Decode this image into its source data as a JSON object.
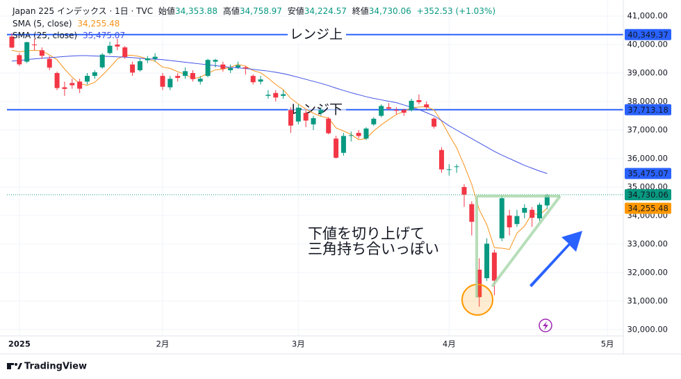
{
  "chart_data": {
    "type": "candlestick",
    "header": {
      "title": "Japan 225 インデックス · 1日 · TVC",
      "stats": [
        {
          "label": "始値",
          "value": "34,353.88"
        },
        {
          "label": "高値",
          "value": "34,758.97"
        },
        {
          "label": "安値",
          "value": "34,224.57"
        },
        {
          "label": "終値",
          "value": "34,730.06"
        }
      ],
      "change": "+352.53 (+1.03%)"
    },
    "categories": [
      null,
      "2025",
      null,
      null,
      null,
      null,
      null,
      null,
      null,
      null,
      null,
      null,
      null,
      null,
      null,
      null,
      null,
      null,
      null,
      null,
      "2月",
      null,
      null,
      null,
      null,
      null,
      null,
      null,
      null,
      null,
      null,
      null,
      null,
      null,
      null,
      null,
      null,
      null,
      "3月",
      null,
      null,
      null,
      null,
      null,
      null,
      null,
      null,
      null,
      null,
      null,
      null,
      null,
      null,
      null,
      null,
      null,
      null,
      null,
      "4月",
      null,
      null,
      null,
      null,
      null,
      null,
      null,
      null,
      null,
      null,
      null,
      null,
      null
    ],
    "future_ticks": [
      "5月"
    ],
    "candles": {
      "up_color": "#089981",
      "down_color": "#f23645",
      "open": [
        40281,
        39628,
        39400,
        40000,
        39800,
        39500,
        39000,
        38500,
        38650,
        38700,
        38700,
        38900,
        39200,
        39700,
        40000,
        39900,
        39300,
        39100,
        39450,
        39500,
        38900,
        38500,
        38900,
        38900,
        39000,
        38700,
        38900,
        39400,
        39300,
        39100,
        39200,
        39200,
        38900,
        38700,
        38200,
        38300,
        38200,
        37700,
        37300,
        37600,
        37200,
        37600,
        37400,
        36700,
        36200,
        36800,
        36900,
        36700,
        37200,
        37500,
        37800,
        37700,
        37700,
        37700,
        38050,
        37900,
        37400,
        36300,
        35600,
        35700,
        35000,
        34400,
        32100,
        31800,
        32700,
        33200,
        34000,
        33700,
        34100,
        34200,
        33900,
        34353.88
      ],
      "high": [
        40400,
        39700,
        40100,
        40200,
        39900,
        39600,
        39050,
        38700,
        38800,
        38800,
        39000,
        39100,
        39700,
        40100,
        40200,
        39950,
        39400,
        39500,
        39600,
        39700,
        39000,
        38900,
        39000,
        39200,
        39100,
        38900,
        39500,
        39500,
        39400,
        39300,
        39400,
        39250,
        38950,
        38900,
        38400,
        38400,
        38400,
        37800,
        37900,
        37700,
        37500,
        37800,
        37450,
        36800,
        36900,
        36950,
        37000,
        37100,
        37450,
        37900,
        37950,
        37800,
        37750,
        38100,
        38250,
        38000,
        37450,
        36400,
        35800,
        35800,
        35100,
        34500,
        32500,
        33200,
        32800,
        34700,
        34200,
        34200,
        34400,
        34300,
        34450,
        34758.97
      ],
      "low": [
        39870,
        39250,
        39350,
        39800,
        39500,
        39100,
        38400,
        38200,
        38450,
        38300,
        38600,
        38800,
        39150,
        39650,
        39800,
        39500,
        38900,
        39050,
        39350,
        39400,
        38400,
        38400,
        38700,
        38800,
        38700,
        38600,
        38850,
        39200,
        39050,
        39000,
        39150,
        38950,
        38600,
        38600,
        38100,
        38000,
        38100,
        36900,
        37200,
        37100,
        37000,
        37500,
        36850,
        36000,
        36100,
        36600,
        36700,
        36650,
        37150,
        37450,
        37700,
        37550,
        37500,
        37650,
        37900,
        37700,
        37050,
        35500,
        35400,
        35500,
        34300,
        33300,
        30800,
        31700,
        31200,
        33100,
        33300,
        33600,
        33900,
        33600,
        33800,
        34224.57
      ],
      "close": [
        39894,
        39307,
        40083,
        39981,
        39605,
        39190,
        38474,
        38444,
        38572,
        38451,
        38902,
        39027,
        39646,
        39958,
        39931,
        39566,
        39016,
        39414,
        39513,
        39572,
        38520,
        38798,
        38831,
        39066,
        38787,
        38801,
        39461,
        39461,
        39149,
        39174,
        39270,
        39164,
        38678,
        38776,
        38237,
        38142,
        38256,
        37155,
        37785,
        37331,
        37418,
        37704,
        36887,
        36028,
        36793,
        36819,
        36790,
        37053,
        37396,
        37845,
        37751,
        37677,
        37608,
        38027,
        37979,
        37799,
        37120,
        35617,
        35624,
        35725,
        34735,
        33780,
        31136,
        33012,
        31714,
        34609,
        33585,
        33982,
        34267,
        33920,
        34377,
        34730.06
      ]
    },
    "series": [
      {
        "name": "SMA (5, close)",
        "color": "#f7931a",
        "last_label": "34,255.48",
        "values": [
          39800,
          39750,
          39780,
          39800,
          39774,
          39633,
          39467,
          39139,
          38857,
          38626,
          38569,
          38679,
          38920,
          39197,
          39493,
          39626,
          39623,
          39577,
          39488,
          39416,
          39207,
          39163,
          39047,
          38957,
          38800,
          38857,
          38989,
          39115,
          39132,
          39209,
          39303,
          39244,
          39087,
          39012,
          38825,
          38599,
          38418,
          38113,
          37915,
          37734,
          37589,
          37479,
          37425,
          37074,
          36966,
          36846,
          36663,
          36697,
          36970,
          37181,
          37367,
          37544,
          37655,
          37782,
          37808,
          37818,
          37707,
          37308,
          36828,
          36377,
          35764,
          35096,
          34200,
          33678,
          32875,
          32850,
          32811,
          33380,
          33631,
          34073,
          34026,
          34255.48
        ]
      },
      {
        "name": "SMA (25, close)",
        "color": "#3f51e5",
        "last_label": "35,475.07",
        "values": [
          39420,
          39440,
          39470,
          39500,
          39520,
          39540,
          39560,
          39580,
          39600,
          39610,
          39610,
          39600,
          39590,
          39580,
          39570,
          39560,
          39540,
          39520,
          39500,
          39490,
          39470,
          39440,
          39410,
          39380,
          39350,
          39320,
          39290,
          39260,
          39230,
          39200,
          39180,
          39160,
          39130,
          39100,
          39070,
          39030,
          38980,
          38920,
          38850,
          38780,
          38710,
          38640,
          38560,
          38470,
          38390,
          38310,
          38240,
          38170,
          38110,
          38060,
          38010,
          37960,
          37880,
          37800,
          37720,
          37610,
          37500,
          37330,
          37150,
          37000,
          36850,
          36700,
          36550,
          36400,
          36250,
          36120,
          36000,
          35880,
          35760,
          35660,
          35560,
          35475.07
        ]
      }
    ],
    "reference_lines": [
      {
        "text": "レンジ上",
        "value": 40349.37,
        "label": "40,349.37",
        "color": "#2962ff"
      },
      {
        "text": "レンジ下",
        "value": 37713.18,
        "label": "37,713.18",
        "color": "#2962ff"
      }
    ],
    "last_price": {
      "value": 34730.06,
      "label": "34,730.06",
      "color": "#089981"
    },
    "ylim": [
      29800,
      41320
    ],
    "yticks": [
      {
        "value": 30000,
        "label": "30,000.00"
      },
      {
        "value": 31000,
        "label": "31,000.00"
      },
      {
        "value": 32000,
        "label": "32,000.00"
      },
      {
        "value": 33000,
        "label": "33,000.00"
      },
      {
        "value": 34000,
        "label": "34,000.00"
      },
      {
        "value": 35000,
        "label": "35,000.00"
      },
      {
        "value": 36000,
        "label": "36,000.00"
      },
      {
        "value": 37000,
        "label": "37,000.00"
      },
      {
        "value": 38000,
        "label": "38,000.00"
      },
      {
        "value": 39000,
        "label": "39,000.00"
      },
      {
        "value": 40000,
        "label": "40,000.00"
      },
      {
        "value": 41000,
        "label": "41,000.00"
      }
    ],
    "grid": true,
    "annotations": [
      "下値を切り上げて",
      "三角持ち合いっぽい"
    ],
    "branding": "TradingView"
  }
}
